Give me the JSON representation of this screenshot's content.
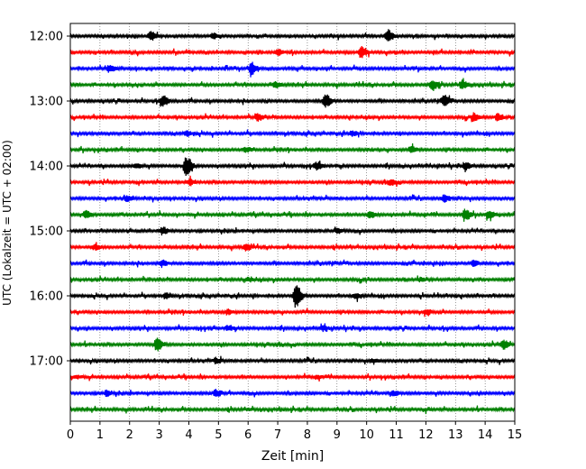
{
  "chart_data": {
    "type": "line",
    "title": "",
    "xlabel": "Zeit  [min]",
    "ylabel": "UTC (Lokalzeit = UTC + 02:00)",
    "xlim": [
      0,
      15
    ],
    "x_ticks": [
      "0",
      "1",
      "2",
      "3",
      "4",
      "5",
      "6",
      "7",
      "8",
      "9",
      "10",
      "11",
      "12",
      "13",
      "14",
      "15"
    ],
    "y_tick_labels": [
      "12:00",
      "13:00",
      "14:00",
      "15:00",
      "16:00",
      "17:00"
    ],
    "grid": "vertical dotted",
    "legend": "none",
    "trace_colors": [
      "#000000",
      "#ff0000",
      "#0000ff",
      "#008000"
    ],
    "traces": [
      {
        "start": "12:00",
        "color": "#000000",
        "events": [
          {
            "t": 2.7,
            "a": 5
          },
          {
            "t": 4.8,
            "a": 3
          },
          {
            "t": 10.7,
            "a": 7
          }
        ]
      },
      {
        "start": "12:15",
        "color": "#ff0000",
        "events": [
          {
            "t": 7.0,
            "a": 3
          },
          {
            "t": 9.8,
            "a": 6
          }
        ]
      },
      {
        "start": "12:30",
        "color": "#0000ff",
        "events": [
          {
            "t": 1.3,
            "a": 4
          },
          {
            "t": 6.1,
            "a": 7
          }
        ]
      },
      {
        "start": "12:45",
        "color": "#008000",
        "events": [
          {
            "t": 6.9,
            "a": 3
          },
          {
            "t": 12.2,
            "a": 6
          },
          {
            "t": 13.2,
            "a": 5
          }
        ]
      },
      {
        "start": "13:00",
        "color": "#000000",
        "events": [
          {
            "t": 3.1,
            "a": 6
          },
          {
            "t": 8.6,
            "a": 7
          },
          {
            "t": 12.6,
            "a": 6
          }
        ]
      },
      {
        "start": "13:15",
        "color": "#ff0000",
        "events": [
          {
            "t": 6.3,
            "a": 4
          },
          {
            "t": 13.6,
            "a": 4
          },
          {
            "t": 14.4,
            "a": 4
          }
        ]
      },
      {
        "start": "13:30",
        "color": "#0000ff",
        "events": [
          {
            "t": 3.9,
            "a": 3
          },
          {
            "t": 9.5,
            "a": 3
          }
        ]
      },
      {
        "start": "13:45",
        "color": "#008000",
        "events": [
          {
            "t": 5.9,
            "a": 3
          },
          {
            "t": 11.5,
            "a": 3
          }
        ]
      },
      {
        "start": "14:00",
        "color": "#000000",
        "events": [
          {
            "t": 2.2,
            "a": 3
          },
          {
            "t": 3.9,
            "a": 11
          },
          {
            "t": 8.3,
            "a": 4
          },
          {
            "t": 13.3,
            "a": 4
          }
        ]
      },
      {
        "start": "14:15",
        "color": "#ff0000",
        "events": [
          {
            "t": 4.0,
            "a": 3
          },
          {
            "t": 10.8,
            "a": 3
          }
        ]
      },
      {
        "start": "14:30",
        "color": "#0000ff",
        "events": [
          {
            "t": 1.9,
            "a": 3
          },
          {
            "t": 12.6,
            "a": 4
          }
        ]
      },
      {
        "start": "14:45",
        "color": "#008000",
        "events": [
          {
            "t": 0.5,
            "a": 4
          },
          {
            "t": 10.1,
            "a": 4
          },
          {
            "t": 13.3,
            "a": 7
          },
          {
            "t": 14.1,
            "a": 5
          }
        ]
      },
      {
        "start": "15:00",
        "color": "#000000",
        "events": [
          {
            "t": 3.1,
            "a": 4
          },
          {
            "t": 9.0,
            "a": 3
          }
        ]
      },
      {
        "start": "15:15",
        "color": "#ff0000",
        "events": [
          {
            "t": 5.9,
            "a": 4
          },
          {
            "t": 0.8,
            "a": 3
          }
        ]
      },
      {
        "start": "15:30",
        "color": "#0000ff",
        "events": [
          {
            "t": 3.1,
            "a": 3
          },
          {
            "t": 13.6,
            "a": 3
          }
        ]
      },
      {
        "start": "15:45",
        "color": "#008000",
        "events": [
          {
            "t": 6.0,
            "a": 2
          },
          {
            "t": 11.8,
            "a": 2
          }
        ]
      },
      {
        "start": "16:00",
        "color": "#000000",
        "events": [
          {
            "t": 3.2,
            "a": 3
          },
          {
            "t": 7.6,
            "a": 14
          },
          {
            "t": 9.6,
            "a": 3
          }
        ]
      },
      {
        "start": "16:15",
        "color": "#ff0000",
        "events": [
          {
            "t": 5.3,
            "a": 3
          },
          {
            "t": 12.0,
            "a": 3
          }
        ]
      },
      {
        "start": "16:30",
        "color": "#0000ff",
        "events": [
          {
            "t": 5.3,
            "a": 3
          },
          {
            "t": 8.5,
            "a": 3
          }
        ]
      },
      {
        "start": "16:45",
        "color": "#008000",
        "events": [
          {
            "t": 2.9,
            "a": 7
          },
          {
            "t": 14.6,
            "a": 5
          }
        ]
      },
      {
        "start": "17:00",
        "color": "#000000",
        "events": [
          {
            "t": 4.9,
            "a": 3
          },
          {
            "t": 10.2,
            "a": 2
          }
        ]
      },
      {
        "start": "17:15",
        "color": "#ff0000",
        "events": [
          {
            "t": 0.2,
            "a": 2
          },
          {
            "t": 8.3,
            "a": 2
          }
        ]
      },
      {
        "start": "17:30",
        "color": "#0000ff",
        "events": [
          {
            "t": 1.2,
            "a": 3
          },
          {
            "t": 4.9,
            "a": 4
          },
          {
            "t": 10.9,
            "a": 3
          }
        ]
      },
      {
        "start": "17:45",
        "color": "#008000",
        "events": [
          {
            "t": 6.0,
            "a": 1
          },
          {
            "t": 12.0,
            "a": 1
          }
        ]
      }
    ]
  }
}
